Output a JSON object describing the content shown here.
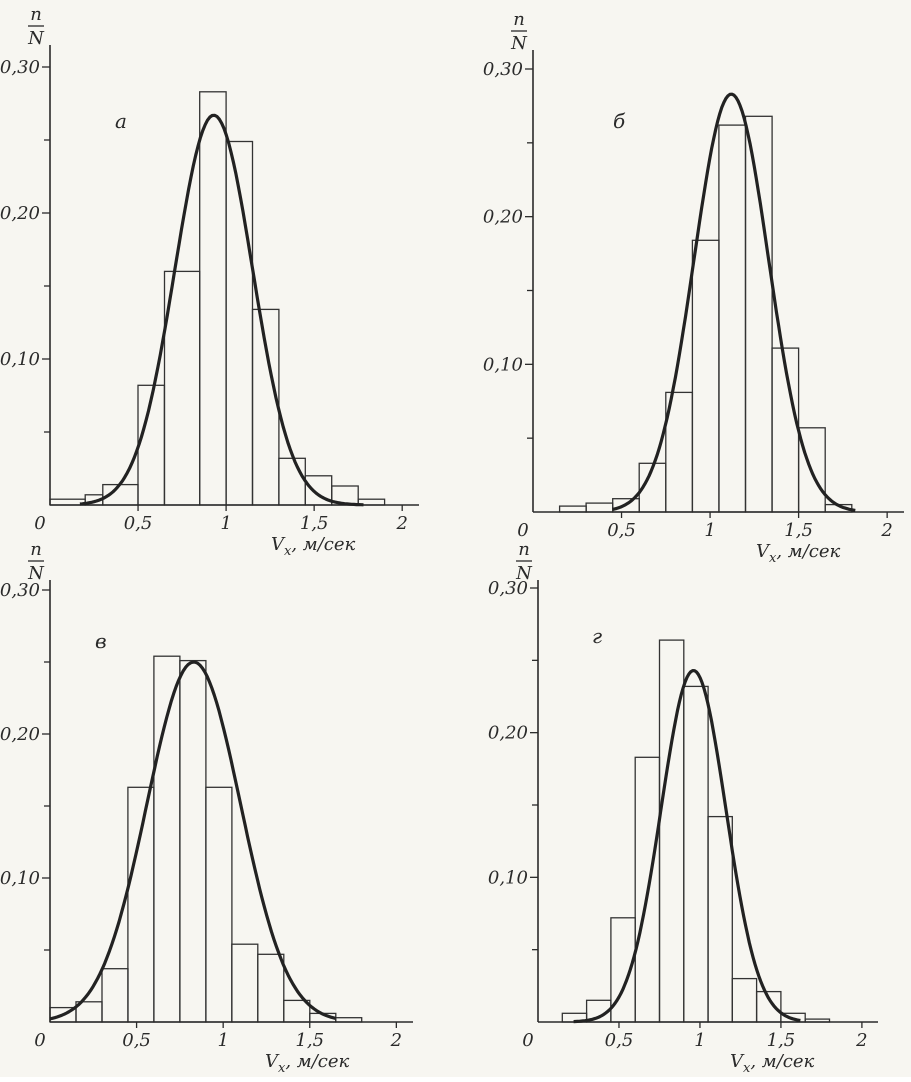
{
  "figure": {
    "background": "#f7f6f1",
    "ink": "#2a2a2a"
  },
  "chart_data": [
    {
      "type": "bar",
      "panel_label": "а",
      "ylabel_top": "n",
      "ylabel_bottom": "N",
      "xlabel": "V",
      "xlabel_sub": "x",
      "xlabel_unit": ", м/сек",
      "xlim": [
        0,
        2.05
      ],
      "ylim": [
        0,
        0.3
      ],
      "x_tick_values": [
        0,
        0.5,
        1,
        1.5,
        2
      ],
      "x_tick_labels": [
        "0",
        "0,5",
        "1",
        "1,5",
        "2"
      ],
      "y_tick_values": [
        0.1,
        0.2,
        0.3
      ],
      "y_tick_labels": [
        "0,10",
        "0,20",
        "0,30"
      ],
      "y_minor_ticks": [
        0.05,
        0.15,
        0.25
      ],
      "bins": [
        [
          0.0,
          0.2
        ],
        [
          0.2,
          0.3
        ],
        [
          0.3,
          0.5
        ],
        [
          0.5,
          0.65
        ],
        [
          0.65,
          0.85
        ],
        [
          0.85,
          1.0
        ],
        [
          1.0,
          1.15
        ],
        [
          1.15,
          1.3
        ],
        [
          1.3,
          1.45
        ],
        [
          1.45,
          1.6
        ],
        [
          1.6,
          1.75
        ],
        [
          1.75,
          1.9
        ]
      ],
      "values": [
        0.004,
        0.007,
        0.014,
        0.082,
        0.16,
        0.283,
        0.249,
        0.134,
        0.032,
        0.02,
        0.013,
        0.004
      ],
      "curve": {
        "kind": "gaussian",
        "mu": 0.93,
        "sigma": 0.22,
        "peak": 0.267,
        "x_start": 0.17,
        "x_end": 1.78
      }
    },
    {
      "type": "bar",
      "panel_label": "б",
      "ylabel_top": "n",
      "ylabel_bottom": "N",
      "xlabel": "V",
      "xlabel_sub": "x",
      "xlabel_unit": ", м/сек",
      "xlim": [
        0,
        2.05
      ],
      "ylim": [
        0,
        0.3
      ],
      "x_tick_values": [
        0,
        0.5,
        1,
        1.5,
        2
      ],
      "x_tick_labels": [
        "0",
        "0,5",
        "1",
        "1,5",
        "2"
      ],
      "y_tick_values": [
        0.1,
        0.2,
        0.3
      ],
      "y_tick_labels": [
        "0,10",
        "0,20",
        "0,30"
      ],
      "y_minor_ticks": [
        0.05,
        0.15,
        0.25
      ],
      "bins": [
        [
          0.15,
          0.3
        ],
        [
          0.3,
          0.45
        ],
        [
          0.45,
          0.6
        ],
        [
          0.6,
          0.75
        ],
        [
          0.75,
          0.9
        ],
        [
          0.9,
          1.05
        ],
        [
          1.05,
          1.2
        ],
        [
          1.2,
          1.35
        ],
        [
          1.35,
          1.5
        ],
        [
          1.5,
          1.65
        ],
        [
          1.65,
          1.8
        ]
      ],
      "values": [
        0.004,
        0.006,
        0.009,
        0.033,
        0.081,
        0.184,
        0.262,
        0.268,
        0.111,
        0.057,
        0.005
      ],
      "curve": {
        "kind": "gaussian",
        "mu": 1.12,
        "sigma": 0.21,
        "peak": 0.283,
        "x_start": 0.45,
        "x_end": 1.82
      }
    },
    {
      "type": "bar",
      "panel_label": "в",
      "ylabel_top": "n",
      "ylabel_bottom": "N",
      "xlabel": "V",
      "xlabel_sub": "x",
      "xlabel_unit": ", м/сек",
      "xlim": [
        0,
        2.05
      ],
      "ylim": [
        0,
        0.3
      ],
      "x_tick_values": [
        0,
        0.5,
        1,
        1.5,
        2
      ],
      "x_tick_labels": [
        "0",
        "0,5",
        "1",
        "1,5",
        "2"
      ],
      "y_tick_values": [
        0.1,
        0.2,
        0.3
      ],
      "y_tick_labels": [
        "0,10",
        "0,20",
        "0,30"
      ],
      "y_minor_ticks": [
        0.05,
        0.15,
        0.25
      ],
      "bins": [
        [
          0.0,
          0.15
        ],
        [
          0.15,
          0.3
        ],
        [
          0.3,
          0.45
        ],
        [
          0.45,
          0.6
        ],
        [
          0.6,
          0.75
        ],
        [
          0.75,
          0.9
        ],
        [
          0.9,
          1.05
        ],
        [
          1.05,
          1.2
        ],
        [
          1.2,
          1.35
        ],
        [
          1.35,
          1.5
        ],
        [
          1.5,
          1.65
        ],
        [
          1.65,
          1.8
        ]
      ],
      "values": [
        0.01,
        0.014,
        0.037,
        0.163,
        0.254,
        0.251,
        0.163,
        0.054,
        0.047,
        0.015,
        0.006,
        0.003
      ],
      "curve": {
        "kind": "gaussian",
        "mu": 0.83,
        "sigma": 0.27,
        "peak": 0.25,
        "x_start": 0.0,
        "x_end": 1.65
      }
    },
    {
      "type": "bar",
      "panel_label": "г",
      "ylabel_top": "n",
      "ylabel_bottom": "N",
      "xlabel": "V",
      "xlabel_sub": "x",
      "xlabel_unit": ", м/сек",
      "xlim": [
        0,
        2.05
      ],
      "ylim": [
        0,
        0.3
      ],
      "x_tick_values": [
        0,
        0.5,
        1,
        1.5,
        2
      ],
      "x_tick_labels": [
        "0",
        "0,5",
        "1",
        "1,5",
        "2"
      ],
      "y_tick_values": [
        0.1,
        0.2,
        0.3
      ],
      "y_tick_labels": [
        "0,10",
        "0,20",
        "0,30"
      ],
      "y_minor_ticks": [
        0.05,
        0.15,
        0.25
      ],
      "bins": [
        [
          0.15,
          0.3
        ],
        [
          0.3,
          0.45
        ],
        [
          0.45,
          0.6
        ],
        [
          0.6,
          0.75
        ],
        [
          0.75,
          0.9
        ],
        [
          0.9,
          1.05
        ],
        [
          1.05,
          1.2
        ],
        [
          1.2,
          1.35
        ],
        [
          1.35,
          1.5
        ],
        [
          1.5,
          1.65
        ],
        [
          1.65,
          1.8
        ]
      ],
      "values": [
        0.006,
        0.015,
        0.072,
        0.183,
        0.264,
        0.232,
        0.142,
        0.03,
        0.021,
        0.006,
        0.002
      ],
      "curve": {
        "kind": "gaussian",
        "mu": 0.96,
        "sigma": 0.2,
        "peak": 0.243,
        "x_start": 0.22,
        "x_end": 1.62
      }
    }
  ]
}
